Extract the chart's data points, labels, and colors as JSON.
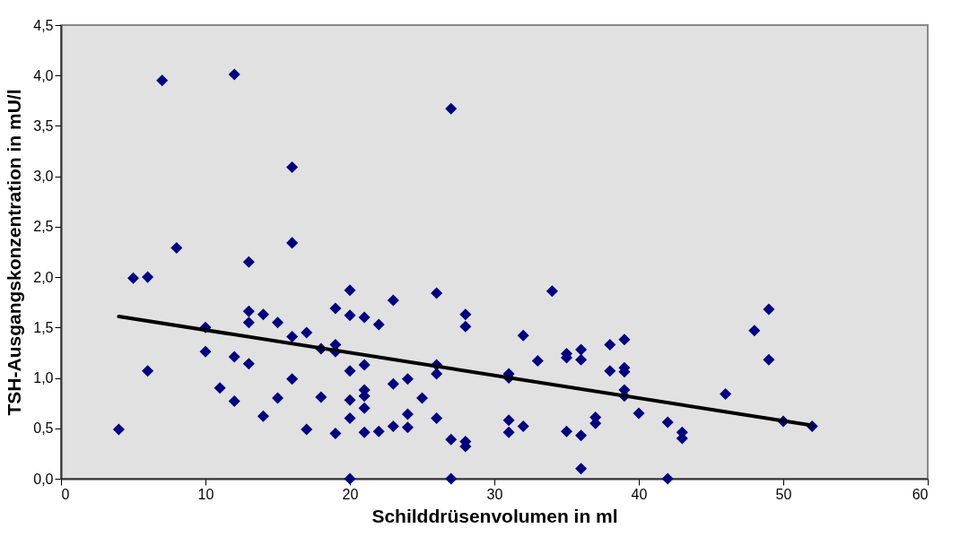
{
  "chart_data": {
    "type": "scatter",
    "xlabel": "Schilddrüsenvolumen in ml",
    "ylabel": "TSH-Ausgangskonzentration in mU/l",
    "xlim": [
      0,
      60
    ],
    "xticks": [
      0,
      10,
      20,
      30,
      40,
      50,
      60
    ],
    "ylim": [
      0,
      4.5
    ],
    "yticks": [
      {
        "value": 0,
        "label": "0,0"
      },
      {
        "value": 0.5,
        "label": "0,5"
      },
      {
        "value": 1,
        "label": "1,0"
      },
      {
        "value": 1.5,
        "label": "1,5"
      },
      {
        "value": 2,
        "label": "2,0"
      },
      {
        "value": 2.5,
        "label": "2,5"
      },
      {
        "value": 3,
        "label": "3,0"
      },
      {
        "value": 3.5,
        "label": "3,5"
      },
      {
        "value": 4,
        "label": "4,0"
      },
      {
        "value": 4.5,
        "label": "4,5"
      }
    ],
    "grid": false,
    "legend": false,
    "series": [
      {
        "marker": "diamond",
        "color": "#000080",
        "x": [
          4,
          5,
          6,
          6,
          7,
          8,
          10,
          10,
          11,
          12,
          12,
          12,
          13,
          13,
          13,
          13,
          14,
          14,
          15,
          15,
          16,
          16,
          16,
          16,
          17,
          17,
          18,
          18,
          19,
          19,
          19,
          19,
          20,
          20,
          20,
          20,
          20,
          20,
          21,
          21,
          21,
          21,
          21,
          21,
          22,
          22,
          23,
          23,
          23,
          24,
          24,
          24,
          25,
          26,
          26,
          26,
          26,
          27,
          27,
          27,
          28,
          28,
          28,
          28,
          31,
          31,
          31,
          31,
          32,
          32,
          33,
          34,
          35,
          35,
          35,
          36,
          36,
          36,
          36,
          37,
          37,
          38,
          38,
          39,
          39,
          39,
          39,
          39,
          40,
          42,
          42,
          43,
          43,
          46,
          48,
          49,
          49,
          50,
          52
        ],
        "values": [
          0.49,
          1.99,
          2.0,
          1.07,
          3.95,
          2.29,
          1.5,
          1.26,
          0.9,
          4.01,
          1.21,
          0.77,
          2.15,
          1.66,
          1.55,
          1.14,
          1.63,
          0.62,
          1.55,
          0.8,
          3.09,
          2.34,
          1.41,
          0.99,
          1.45,
          0.49,
          1.29,
          0.81,
          1.69,
          1.33,
          1.26,
          0.45,
          1.87,
          1.62,
          1.07,
          0.78,
          0.6,
          0.0,
          1.6,
          1.13,
          0.88,
          0.82,
          0.7,
          0.46,
          1.53,
          0.47,
          1.77,
          0.94,
          0.52,
          0.99,
          0.64,
          0.51,
          0.8,
          1.84,
          1.13,
          1.04,
          0.6,
          3.67,
          0.39,
          0.0,
          1.63,
          1.51,
          0.37,
          0.32,
          1.04,
          1.0,
          0.58,
          0.46,
          1.42,
          0.52,
          1.17,
          1.86,
          1.24,
          1.2,
          0.47,
          1.28,
          1.18,
          0.43,
          0.1,
          0.61,
          0.55,
          1.33,
          1.07,
          1.38,
          1.1,
          1.06,
          0.88,
          0.82,
          0.65,
          0.56,
          0.0,
          0.46,
          0.4,
          0.84,
          1.47,
          1.68,
          1.18,
          0.57,
          0.52
        ]
      },
      {
        "type": "line",
        "color": "#000000",
        "x": [
          4,
          52
        ],
        "values": [
          1.61,
          0.53
        ]
      }
    ]
  }
}
